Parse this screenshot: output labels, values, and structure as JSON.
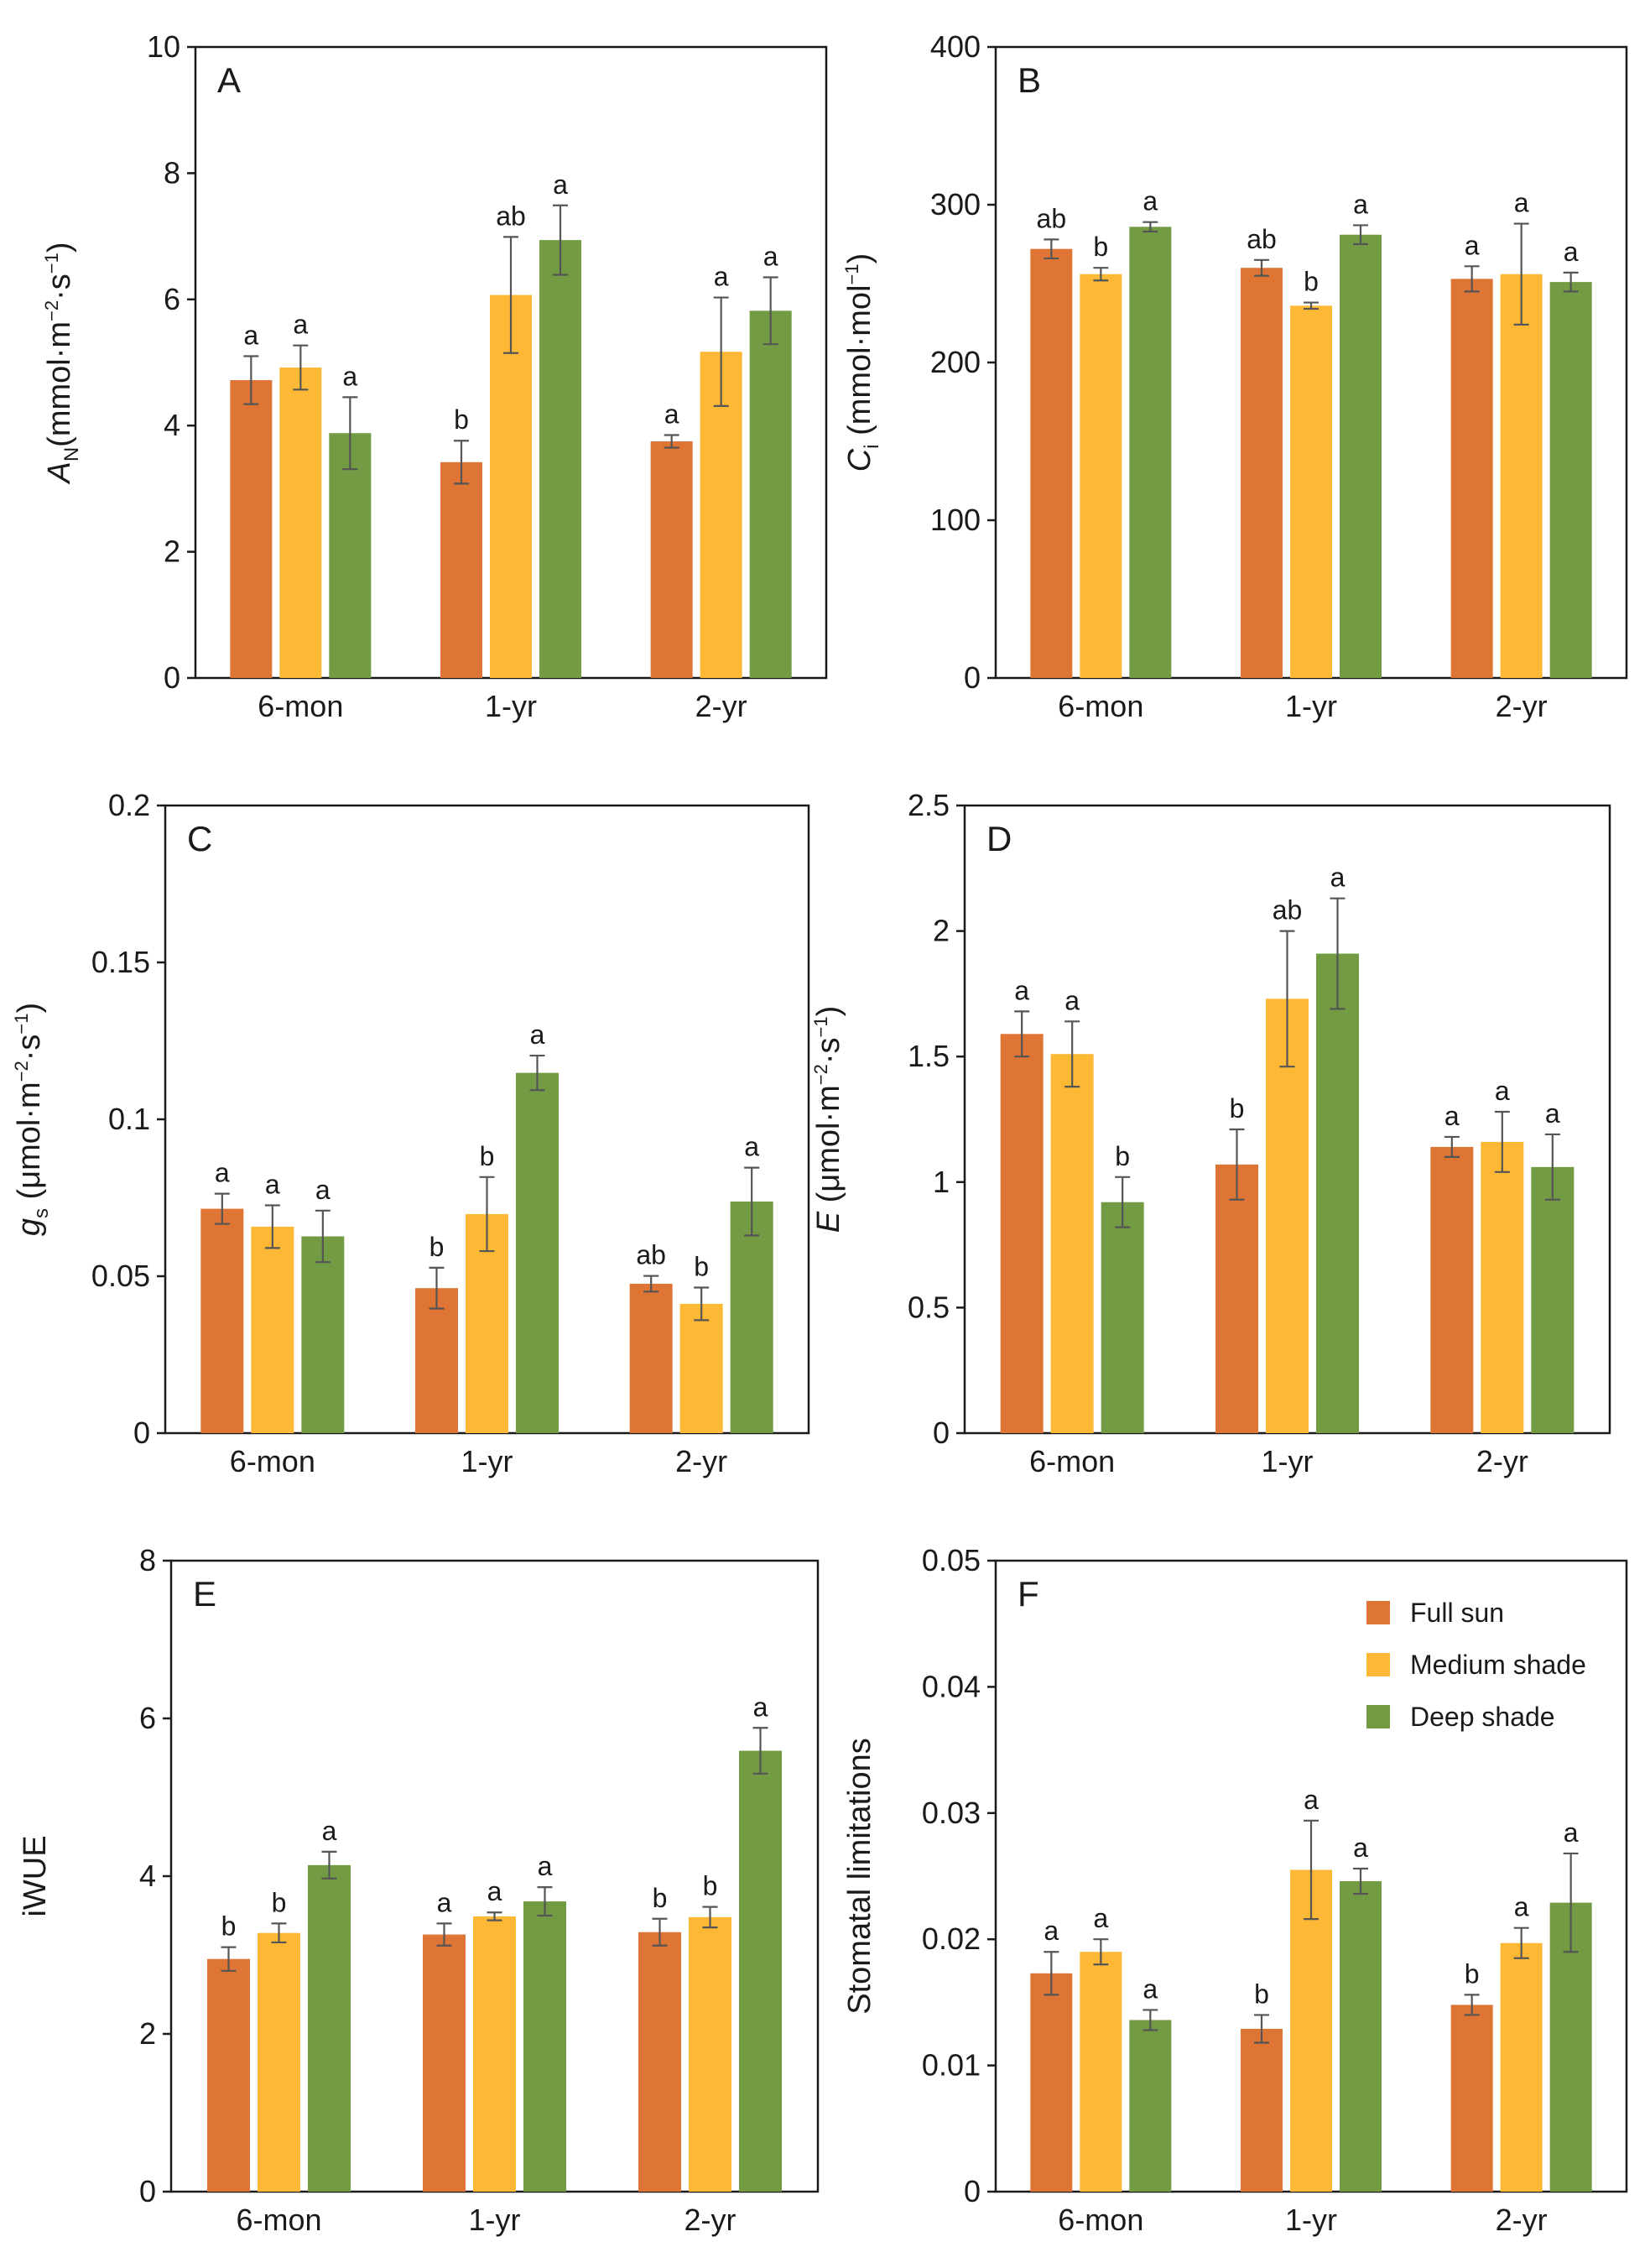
{
  "colors": {
    "full_sun": "#DF7534",
    "medium_shade": "#FDB936",
    "deep_shade": "#729B43",
    "axis": "#1a1a1a",
    "error_bar": "#555555"
  },
  "legend": {
    "entries": [
      "Full sun",
      "Medium shade",
      "Deep shade"
    ]
  },
  "chart_data": [
    {
      "panel": "A",
      "type": "bar",
      "categories": [
        "6-mon",
        "1-yr",
        "2-yr"
      ],
      "ylabel": {
        "main": "A",
        "sub": "N",
        "unit": "(mmol·m",
        "sup1": "−2",
        "mid": "·s",
        "sup2": "−1",
        "end": ")",
        "italic": true
      },
      "ylim": [
        0,
        10
      ],
      "yticks": [
        0,
        2,
        4,
        6,
        8,
        10
      ],
      "ytick_labels": [
        "0",
        "2",
        "4",
        "6",
        "8",
        "10"
      ],
      "series": [
        {
          "name": "Full sun",
          "values": [
            4.72,
            3.42,
            3.75
          ],
          "errors": [
            0.38,
            0.34,
            0.1
          ],
          "letters": [
            "a",
            "b",
            "a"
          ]
        },
        {
          "name": "Medium shade",
          "values": [
            4.92,
            6.07,
            5.17
          ],
          "errors": [
            0.35,
            0.92,
            0.86
          ],
          "letters": [
            "a",
            "ab",
            "a"
          ]
        },
        {
          "name": "Deep shade",
          "values": [
            3.88,
            6.94,
            5.82
          ],
          "errors": [
            0.57,
            0.55,
            0.53
          ],
          "letters": [
            "a",
            "a",
            "a"
          ]
        }
      ]
    },
    {
      "panel": "B",
      "type": "bar",
      "categories": [
        "6-mon",
        "1-yr",
        "2-yr"
      ],
      "ylabel": {
        "main": "C",
        "sub": "i",
        "unit": " (mmol·mol",
        "sup1": "−1",
        "mid": "",
        "sup2": "",
        "end": ")",
        "italic": true
      },
      "ylim": [
        0,
        400
      ],
      "yticks": [
        0,
        100,
        200,
        300,
        400
      ],
      "ytick_labels": [
        "0",
        "100",
        "200",
        "300",
        "400"
      ],
      "series": [
        {
          "name": "Full sun",
          "values": [
            272,
            260,
            253
          ],
          "errors": [
            6,
            5,
            8
          ],
          "letters": [
            "ab",
            "ab",
            "a"
          ]
        },
        {
          "name": "Medium shade",
          "values": [
            256,
            236,
            256
          ],
          "errors": [
            4,
            2,
            32
          ],
          "letters": [
            "b",
            "b",
            "a"
          ]
        },
        {
          "name": "Deep shade",
          "values": [
            286,
            281,
            251
          ],
          "errors": [
            3,
            6,
            6
          ],
          "letters": [
            "a",
            "a",
            "a"
          ]
        }
      ]
    },
    {
      "panel": "C",
      "type": "bar",
      "categories": [
        "6-mon",
        "1-yr",
        "2-yr"
      ],
      "ylabel": {
        "main": "g",
        "sub": "s",
        "unit": "  (μmol·m",
        "sup1": "−2",
        "mid": "·s",
        "sup2": "−1",
        "end": ")",
        "italic": true
      },
      "ylim": [
        0,
        0.2
      ],
      "yticks": [
        0,
        0.05,
        0.1,
        0.15,
        0.2
      ],
      "ytick_labels": [
        "0",
        "0.05",
        "0.1",
        "0.15",
        "0.2"
      ],
      "series": [
        {
          "name": "Full sun",
          "values": [
            0.0715,
            0.0462,
            0.0476
          ],
          "errors": [
            0.0048,
            0.0065,
            0.0025
          ],
          "letters": [
            "a",
            "b",
            "ab"
          ]
        },
        {
          "name": "Medium shade",
          "values": [
            0.0658,
            0.0698,
            0.0412
          ],
          "errors": [
            0.0068,
            0.0118,
            0.0052
          ],
          "letters": [
            "a",
            "b",
            "b"
          ]
        },
        {
          "name": "Deep shade",
          "values": [
            0.0627,
            0.1148,
            0.0738
          ],
          "errors": [
            0.0082,
            0.0055,
            0.0108
          ],
          "letters": [
            "a",
            "a",
            "a"
          ]
        }
      ]
    },
    {
      "panel": "D",
      "type": "bar",
      "categories": [
        "6-mon",
        "1-yr",
        "2-yr"
      ],
      "ylabel": {
        "main": "E",
        "sub": "",
        "unit": "  (μmol·m",
        "sup1": "−2",
        "mid": "·s",
        "sup2": "−1",
        "end": ")",
        "italic": true
      },
      "ylim": [
        0,
        2.5
      ],
      "yticks": [
        0,
        0.5,
        1,
        1.5,
        2,
        2.5
      ],
      "ytick_labels": [
        "0",
        "0.5",
        "1",
        "1.5",
        "2",
        "2.5"
      ],
      "series": [
        {
          "name": "Full sun",
          "values": [
            1.59,
            1.07,
            1.14
          ],
          "errors": [
            0.09,
            0.14,
            0.04
          ],
          "letters": [
            "a",
            "b",
            "a"
          ]
        },
        {
          "name": "Medium shade",
          "values": [
            1.51,
            1.73,
            1.16
          ],
          "errors": [
            0.13,
            0.27,
            0.12
          ],
          "letters": [
            "a",
            "ab",
            "a"
          ]
        },
        {
          "name": "Deep shade",
          "values": [
            0.92,
            1.91,
            1.06
          ],
          "errors": [
            0.1,
            0.22,
            0.13
          ],
          "letters": [
            "b",
            "a",
            "a"
          ]
        }
      ]
    },
    {
      "panel": "E",
      "type": "bar",
      "categories": [
        "6-mon",
        "1-yr",
        "2-yr"
      ],
      "ylabel": {
        "main": "iWUE",
        "sub": "",
        "unit": "",
        "sup1": "",
        "mid": "",
        "sup2": "",
        "end": "",
        "italic": false
      },
      "ylim": [
        0,
        8
      ],
      "yticks": [
        0,
        2,
        4,
        6,
        8
      ],
      "ytick_labels": [
        "0",
        "2",
        "4",
        "6",
        "8"
      ],
      "series": [
        {
          "name": "Full sun",
          "values": [
            2.95,
            3.26,
            3.29
          ],
          "errors": [
            0.15,
            0.14,
            0.17
          ],
          "letters": [
            "b",
            "a",
            "b"
          ]
        },
        {
          "name": "Medium shade",
          "values": [
            3.28,
            3.49,
            3.48
          ],
          "errors": [
            0.12,
            0.05,
            0.13
          ],
          "letters": [
            "b",
            "a",
            "b"
          ]
        },
        {
          "name": "Deep shade",
          "values": [
            4.14,
            3.68,
            5.59
          ],
          "errors": [
            0.17,
            0.18,
            0.29
          ],
          "letters": [
            "a",
            "a",
            "a"
          ]
        }
      ]
    },
    {
      "panel": "F",
      "type": "bar",
      "categories": [
        "6-mon",
        "1-yr",
        "2-yr"
      ],
      "ylabel": {
        "main": "Stomatal limitations",
        "sub": "",
        "unit": "",
        "sup1": "",
        "mid": "",
        "sup2": "",
        "end": "",
        "italic": false
      },
      "ylim": [
        0,
        0.05
      ],
      "yticks": [
        0,
        0.01,
        0.02,
        0.03,
        0.04,
        0.05
      ],
      "ytick_labels": [
        "0",
        "0.01",
        "0.02",
        "0.03",
        "0.04",
        "0.05"
      ],
      "legend": true,
      "series": [
        {
          "name": "Full sun",
          "values": [
            0.0173,
            0.0129,
            0.0148
          ],
          "errors": [
            0.0017,
            0.0011,
            0.0008
          ],
          "letters": [
            "a",
            "b",
            "b"
          ]
        },
        {
          "name": "Medium shade",
          "values": [
            0.019,
            0.0255,
            0.0197
          ],
          "errors": [
            0.001,
            0.0039,
            0.0012
          ],
          "letters": [
            "a",
            "a",
            "a"
          ]
        },
        {
          "name": "Deep shade",
          "values": [
            0.0136,
            0.0246,
            0.0229
          ],
          "errors": [
            0.0008,
            0.001,
            0.0039
          ],
          "letters": [
            "a",
            "a",
            "a"
          ]
        }
      ]
    }
  ]
}
